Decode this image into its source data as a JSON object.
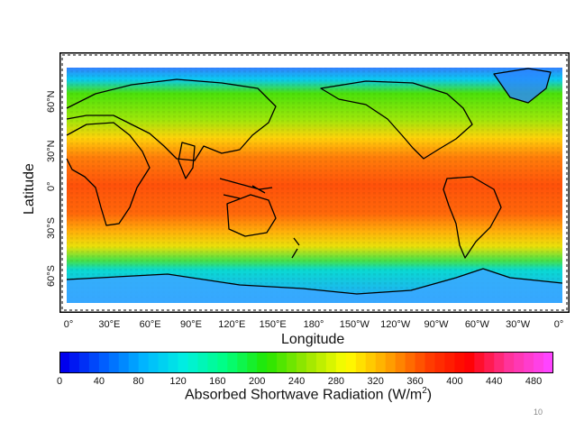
{
  "figure": {
    "x_axis_title": "Longitude",
    "y_axis_title": "Latitude",
    "colorbar_title": "Absorbed Shortwave Radiation (W/m",
    "colorbar_title_sup": "2",
    "colorbar_title_end": ")",
    "page_number": "10"
  },
  "map": {
    "projection": "equirectangular",
    "longitude_center": "180°",
    "grid": "lat/lon degree ticks",
    "x_tick_labels": [
      "0°",
      "30°E",
      "60°E",
      "90°E",
      "120°E",
      "150°E",
      "180°",
      "150°W",
      "120°W",
      "90°W",
      "60°W",
      "30°W",
      "0°"
    ],
    "y_tick_labels": [
      "60°N",
      "30°N",
      "0°",
      "30°S",
      "60°S"
    ],
    "color_ramp": [
      "#0000ee",
      "#0060ff",
      "#00b8ff",
      "#00f0e0",
      "#00ff80",
      "#22e600",
      "#9ae600",
      "#ffff00",
      "#ffa500",
      "#ff4000",
      "#ff0000",
      "#ff3399",
      "#ff44ff"
    ],
    "colorbar_ticks": [
      "0",
      "40",
      "80",
      "120",
      "160",
      "200",
      "240",
      "280",
      "320",
      "360",
      "400",
      "440",
      "480"
    ],
    "colorbar_range": [
      0,
      500
    ]
  }
}
